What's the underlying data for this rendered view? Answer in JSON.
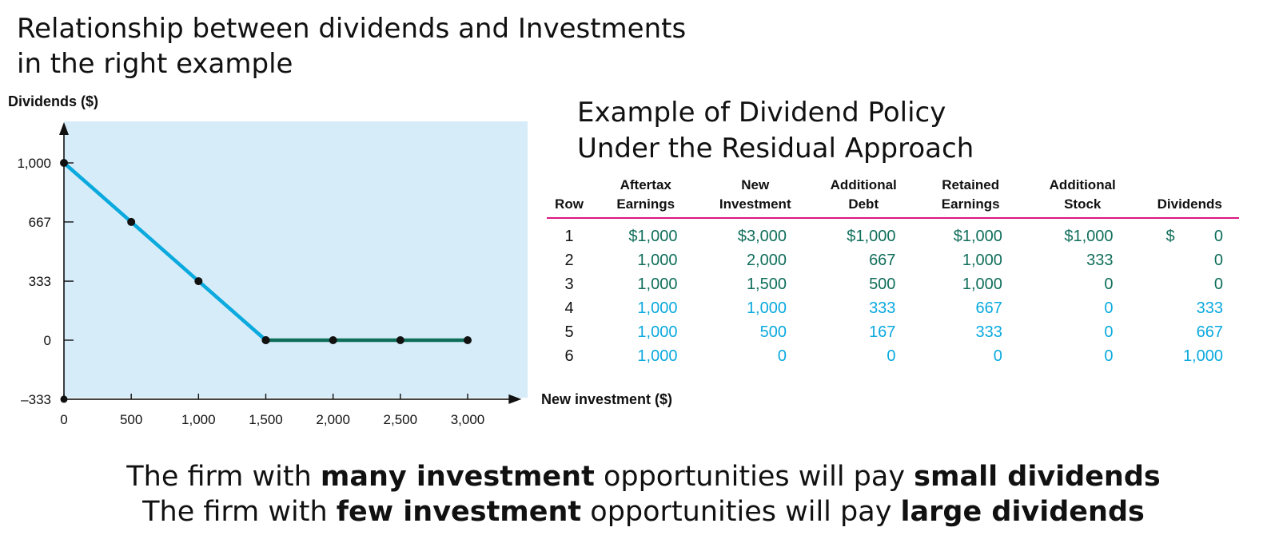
{
  "title": {
    "line1": "Relationship between dividends and Investments",
    "line2": "in the right example"
  },
  "chart_data": {
    "type": "line",
    "ylabel": "Dividends ($)",
    "xlabel": "New investment ($)",
    "x_ticks": [
      "0",
      "500",
      "1,000",
      "1,500",
      "2,000",
      "2,500",
      "3,000"
    ],
    "y_ticks": [
      "1,000",
      "667",
      "333",
      "0",
      "–333"
    ],
    "xlim": [
      0,
      3400
    ],
    "ylim": [
      -333,
      1230
    ],
    "series": [
      {
        "color": "#0aa9de",
        "x": [
          0,
          500,
          1000,
          1500
        ],
        "y": [
          1000,
          667,
          333,
          0
        ]
      },
      {
        "color": "#0f6e5a",
        "x": [
          1500,
          2000,
          2500,
          3000
        ],
        "y": [
          0,
          0,
          0,
          0
        ]
      }
    ],
    "background": "#d6ecf8"
  },
  "table": {
    "title_line1": "Example of Dividend Policy",
    "title_line2": "Under the Residual Approach",
    "headers": [
      {
        "line1": "",
        "line2": "Row"
      },
      {
        "line1": "Aftertax",
        "line2": "Earnings"
      },
      {
        "line1": "New",
        "line2": "Investment"
      },
      {
        "line1": "Additional",
        "line2": "Debt"
      },
      {
        "line1": "Retained",
        "line2": "Earnings"
      },
      {
        "line1": "Additional",
        "line2": "Stock"
      },
      {
        "line1": "",
        "line2": "Dividends"
      }
    ],
    "rows": [
      {
        "row": "1",
        "earnings": "$1,000",
        "investment": "$3,000",
        "debt": "$1,000",
        "retained": "$1,000",
        "stock": "$1,000",
        "div_sign": "$",
        "dividends": "0"
      },
      {
        "row": "2",
        "earnings": "1,000",
        "investment": "2,000",
        "debt": "667",
        "retained": "1,000",
        "stock": "333",
        "div_sign": "",
        "dividends": "0"
      },
      {
        "row": "3",
        "earnings": "1,000",
        "investment": "1,500",
        "debt": "500",
        "retained": "1,000",
        "stock": "0",
        "div_sign": "",
        "dividends": "0"
      },
      {
        "row": "4",
        "earnings": "1,000",
        "investment": "1,000",
        "debt": "333",
        "retained": "667",
        "stock": "0",
        "div_sign": "",
        "dividends": "333"
      },
      {
        "row": "5",
        "earnings": "1,000",
        "investment": "500",
        "debt": "167",
        "retained": "333",
        "stock": "0",
        "div_sign": "",
        "dividends": "667"
      },
      {
        "row": "6",
        "earnings": "1,000",
        "investment": "0",
        "debt": "0",
        "retained": "0",
        "stock": "0",
        "div_sign": "",
        "dividends": "1,000"
      }
    ],
    "colors": {
      "rule": "#d9197f",
      "green": "#0f6e5a",
      "blue": "#0aa9de"
    }
  },
  "conclusion": {
    "line1": {
      "pre": "The firm with ",
      "bold1": "many investment",
      "mid": " opportunities will pay ",
      "bold2": "small dividends"
    },
    "line2": {
      "pre": "The firm with ",
      "bold1": "few investment",
      "mid": " opportunities will pay ",
      "bold2": "large dividends"
    }
  }
}
